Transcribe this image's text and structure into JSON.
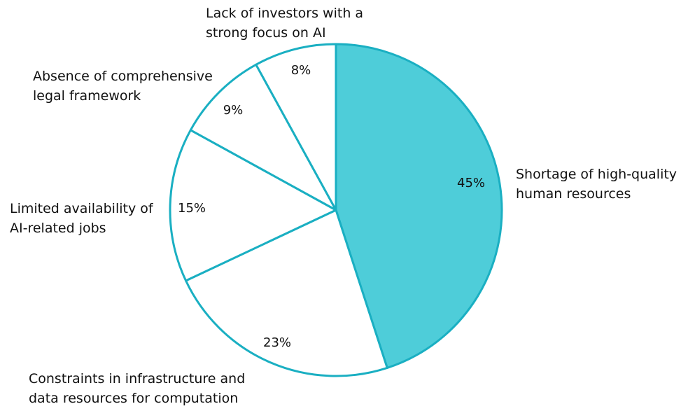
{
  "chart_data": {
    "type": "pie",
    "title": "",
    "start_angle_deg": 0,
    "direction": "clockwise",
    "slices": [
      {
        "label": "Shortage of high-quality human resources",
        "value": 45,
        "display": "45%",
        "fill": "#4ECDD9"
      },
      {
        "label": "Constraints in infrastructure and data resources for computation",
        "value": 23,
        "display": "23%",
        "fill": "#FFFFFF"
      },
      {
        "label": "Limited availability of AI-related jobs",
        "value": 15,
        "display": "15%",
        "fill": "#FFFFFF"
      },
      {
        "label": "Absence of comprehensive legal framework",
        "value": 9,
        "display": "9%",
        "fill": "#FFFFFF"
      },
      {
        "label": "Lack of investors with a strong focus on AI",
        "value": 8,
        "display": "8%",
        "fill": "#FFFFFF"
      }
    ],
    "stroke_color": "#1AAFC2",
    "legend": "none (category labels placed beside slices)"
  },
  "labels": {
    "s0": {
      "line1": "Shortage of high-quality",
      "line2": "human resources",
      "pct": "45%"
    },
    "s1": {
      "line1": "Constraints in infrastructure and",
      "line2": "data resources for computation",
      "pct": "23%"
    },
    "s2": {
      "line1": "Limited availability of",
      "line2": "AI-related jobs",
      "pct": "15%"
    },
    "s3": {
      "line1": "Absence of comprehensive",
      "line2": "legal framework",
      "pct": "9%"
    },
    "s4": {
      "line1": "Lack of investors with a",
      "line2": "strong focus on AI",
      "pct": "8%"
    }
  }
}
